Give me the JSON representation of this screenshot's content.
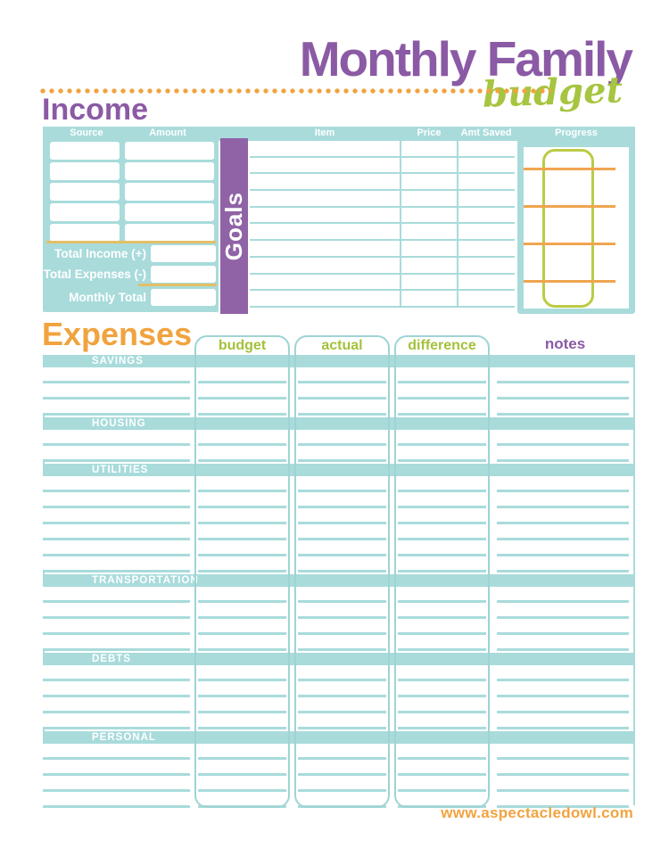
{
  "page": {
    "title_line1": "Monthly Family",
    "title_line2": "budget",
    "footer": "www.aspectacledowl.com"
  },
  "colors": {
    "purple": "#8b5aa5",
    "banner_purple": "#8f63a6",
    "teal": "#a9dbdb",
    "orange": "#f1a33f",
    "green": "#a3c13c",
    "yellow_line": "#e3bf66",
    "thermometer_green": "#bccb45",
    "thermometer_orange": "#f0a54f"
  },
  "income": {
    "heading": "Income",
    "columns": {
      "source": "Source",
      "amount": "Amount"
    },
    "row_count": 5,
    "totals": [
      "Total Income (+)",
      "Total Expenses (-)",
      "Monthly Total"
    ]
  },
  "goals": {
    "banner": "Goals",
    "columns": {
      "item": "Item",
      "price": "Price",
      "amt_saved": "Amt Saved",
      "progress": "Progress"
    },
    "row_count": 10,
    "progress_line_count": 4
  },
  "expenses": {
    "heading": "Expenses",
    "column_headers": {
      "budget": "budget",
      "actual": "actual",
      "difference": "difference",
      "notes": "notes"
    },
    "sections": [
      {
        "label": "SAVINGS",
        "rows": 3
      },
      {
        "label": "HOUSING",
        "rows": 2
      },
      {
        "label": "UTILITIES",
        "rows": 6
      },
      {
        "label": "TRANSPORTATION",
        "rows": 4
      },
      {
        "label": "DEBTS",
        "rows": 4
      },
      {
        "label": "PERSONAL",
        "rows": 4
      }
    ]
  }
}
